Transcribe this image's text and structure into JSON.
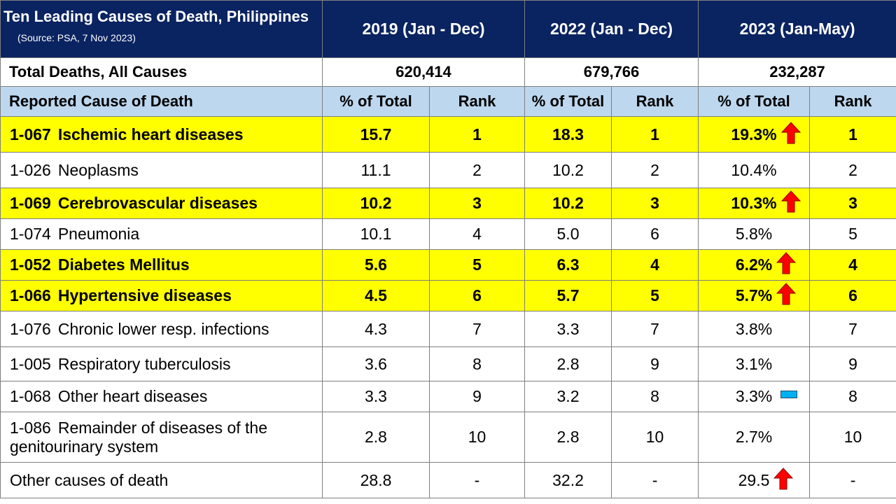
{
  "title": "Ten Leading Causes of Death, Philippines",
  "source": "(Source: PSA, 7 Nov 2023)",
  "periods": [
    "2019 (Jan - Dec)",
    "2022 (Jan - Dec)",
    "2023 (Jan-May)"
  ],
  "total_label": "Total Deaths, All Causes",
  "totals": [
    "620,414",
    "679,766",
    "232,287"
  ],
  "col_headers": {
    "cause": "Reported Cause of Death",
    "pct": "% of Total",
    "rank": "Rank"
  },
  "rows": [
    {
      "code": "1-067",
      "name": "Ischemic heart diseases",
      "p2019": "15.7",
      "r2019": "1",
      "p2022": "18.3",
      "r2022": "1",
      "p2023": "19.3%",
      "r2023": "1",
      "marker": "up-arrow"
    },
    {
      "code": "1-026",
      "name": "Neoplasms",
      "p2019": "11.1",
      "r2019": "2",
      "p2022": "10.2",
      "r2022": "2",
      "p2023": "10.4%",
      "r2023": "2",
      "marker": ""
    },
    {
      "code": "1-069",
      "name": "Cerebrovascular diseases",
      "p2019": "10.2",
      "r2019": "3",
      "p2022": "10.2",
      "r2022": "3",
      "p2023": "10.3%",
      "r2023": "3",
      "marker": "up-arrow"
    },
    {
      "code": "1-074",
      "name": "Pneumonia",
      "p2019": "10.1",
      "r2019": "4",
      "p2022": "5.0",
      "r2022": "6",
      "p2023": "5.8%",
      "r2023": "5",
      "marker": ""
    },
    {
      "code": "1-052",
      "name": "Diabetes Mellitus",
      "p2019": "5.6",
      "r2019": "5",
      "p2022": "6.3",
      "r2022": "4",
      "p2023": "6.2%",
      "r2023": "4",
      "marker": "up-arrow"
    },
    {
      "code": "1-066",
      "name": "Hypertensive diseases",
      "p2019": "4.5",
      "r2019": "6",
      "p2022": "5.7",
      "r2022": "5",
      "p2023": "5.7%",
      "r2023": "6",
      "marker": "up-arrow"
    },
    {
      "code": "1-076",
      "name": "Chronic lower resp. infections",
      "p2019": "4.3",
      "r2019": "7",
      "p2022": "3.3",
      "r2022": "7",
      "p2023": "3.8%",
      "r2023": "7",
      "marker": ""
    },
    {
      "code": "1-005",
      "name": "Respiratory tuberculosis",
      "p2019": "3.6",
      "r2019": "8",
      "p2022": "2.8",
      "r2022": "9",
      "p2023": "3.1%",
      "r2023": "9",
      "marker": ""
    },
    {
      "code": "1-068",
      "name": "Other heart diseases",
      "p2019": "3.3",
      "r2019": "9",
      "p2022": "3.2",
      "r2022": "8",
      "p2023": "3.3%",
      "r2023": "8",
      "marker": "flat-dash"
    },
    {
      "code": "1-086",
      "name": "Remainder of diseases of the genitourinary system",
      "p2019": "2.8",
      "r2019": "10",
      "p2022": "2.8",
      "r2022": "10",
      "p2023": "2.7%",
      "r2023": "10",
      "marker": ""
    },
    {
      "code": "",
      "name": "Other causes of death",
      "p2019": "28.8",
      "r2019": "-",
      "p2022": "32.2",
      "r2022": "-",
      "p2023": "29.5",
      "r2023": "-",
      "marker": "up-arrow"
    }
  ],
  "colors": {
    "header_bg": "#0a2361",
    "subheader_bg": "#bdd7ee",
    "highlight_bg": "#ffff00",
    "arrow_up": "#ff0000",
    "flat_marker": "#00b0f0"
  }
}
